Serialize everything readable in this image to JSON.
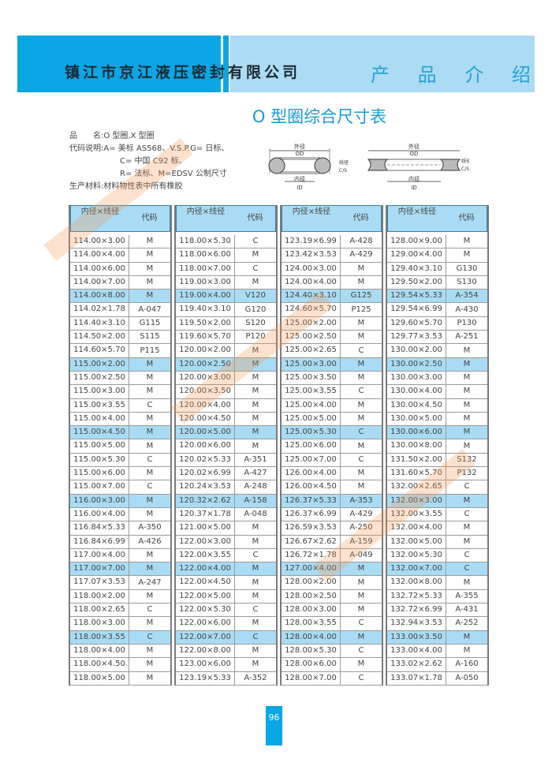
{
  "header": {
    "company": "镇江市京江液压密封有限公司",
    "section": "产 品 介 绍"
  },
  "title": "O 型圈综合尺寸表",
  "info": {
    "line1": "品　　名:O 型圈,X 型圈",
    "line2": "代码说明:A= 美标 AS568、V.S.P.G= 日标、",
    "line3": "C= 中国 C92 标、",
    "line4": "R= 法标、M=EDSV 公制尺寸",
    "line5": "生产材料:材料物性表中所有橡胶"
  },
  "diagram": {
    "od_cn": "外径",
    "od": "OD",
    "id_cn": "内径",
    "id": "ID",
    "cs_cn": "线径",
    "cs": "C/S"
  },
  "table_headers": {
    "size": "内径×线径",
    "code": "代码"
  },
  "colors": {
    "brand_blue": "#0aa6e6",
    "light_blue": "#abdcf3",
    "highlight_row": "#a9dcf4",
    "watermark": "#f59650"
  },
  "tables": [
    [
      [
        "114.00×3.00",
        "M"
      ],
      [
        "114.00×4.00",
        "M"
      ],
      [
        "114.00×6.00",
        "M"
      ],
      [
        "114.00×7.00",
        "M"
      ],
      [
        "114.00×8.00",
        "M"
      ],
      [
        "114.02×1.78",
        "A-047"
      ],
      [
        "114.40×3.10",
        "G115"
      ],
      [
        "114.50×2.00",
        "S115"
      ],
      [
        "114.60×5.70",
        "P115"
      ],
      [
        "115.00×2.00",
        "M"
      ],
      [
        "115.00×2.50",
        "M"
      ],
      [
        "115.00×3.00",
        "M"
      ],
      [
        "115.00×3.55",
        "C"
      ],
      [
        "115.00×4.00",
        "M"
      ],
      [
        "115.00×4.50",
        "M"
      ],
      [
        "115.00×5.00",
        "M"
      ],
      [
        "115.00×5.30",
        "C"
      ],
      [
        "115.00×6.00",
        "M"
      ],
      [
        "115.00×7.00",
        "C"
      ],
      [
        "116.00×3.00",
        "M"
      ],
      [
        "116.00×4.00",
        "M"
      ],
      [
        "116.84×5.33",
        "A-350"
      ],
      [
        "116.84×6.99",
        "A-426"
      ],
      [
        "117.00×4.00",
        "M"
      ],
      [
        "117.00×7.00",
        "M"
      ],
      [
        "117.07×3.53",
        "A-247"
      ],
      [
        "118.00×2.00",
        "M"
      ],
      [
        "118.00×2.65",
        "C"
      ],
      [
        "118.00×3.00",
        "M"
      ],
      [
        "118.00×3.55",
        "C"
      ],
      [
        "118.00×4.00",
        "M"
      ],
      [
        "118.00×4.50",
        "M"
      ],
      [
        "118.00×5.00",
        "M"
      ]
    ],
    [
      [
        "118.00×5.30",
        "C"
      ],
      [
        "118.00×6.00",
        "M"
      ],
      [
        "118.00×7.00",
        "C"
      ],
      [
        "119.00×3.00",
        "M"
      ],
      [
        "119.00×4.00",
        "V120"
      ],
      [
        "119.40×3.10",
        "G120"
      ],
      [
        "119.50×2.00",
        "S120"
      ],
      [
        "119.60×5.70",
        "P120"
      ],
      [
        "120.00×2.00",
        "M"
      ],
      [
        "120.00×2.50",
        "M"
      ],
      [
        "120.00×3.00",
        "M"
      ],
      [
        "120.00×3.50",
        "M"
      ],
      [
        "120.00×4.00",
        "M"
      ],
      [
        "120.00×4.50",
        "M"
      ],
      [
        "120.00×5.00",
        "M"
      ],
      [
        "120.00×6.00",
        "M"
      ],
      [
        "120.02×5.33",
        "A-351"
      ],
      [
        "120.02×6.99",
        "A-427"
      ],
      [
        "120.24×3.53",
        "A-248"
      ],
      [
        "120.32×2.62",
        "A-158"
      ],
      [
        "120.37×1.78",
        "A-048"
      ],
      [
        "121.00×5.00",
        "M"
      ],
      [
        "122.00×3.00",
        "M"
      ],
      [
        "122.00×3.55",
        "C"
      ],
      [
        "122.00×4.00",
        "M"
      ],
      [
        "122.00×4.50",
        "M"
      ],
      [
        "122.00×5.00",
        "M"
      ],
      [
        "122.00×5.30",
        "C"
      ],
      [
        "122.00×6.00",
        "M"
      ],
      [
        "122.00×7.00",
        "C"
      ],
      [
        "122.00×8.00",
        "M"
      ],
      [
        "123.00×6.00",
        "M"
      ],
      [
        "123.19×5.33",
        "A-352"
      ]
    ],
    [
      [
        "123.19×6.99",
        "A-428"
      ],
      [
        "123.42×3.53",
        "A-429"
      ],
      [
        "124.00×3.00",
        "M"
      ],
      [
        "124.00×4.00",
        "M"
      ],
      [
        "124.40×3.10",
        "G125"
      ],
      [
        "124.60×5.70",
        "P125"
      ],
      [
        "125.00×2.00",
        "M"
      ],
      [
        "125.00×2.50",
        "M"
      ],
      [
        "125.00×2.65",
        "C"
      ],
      [
        "125.00×3.00",
        "M"
      ],
      [
        "125.00×3.50",
        "M"
      ],
      [
        "125.00×3.55",
        "C"
      ],
      [
        "125.00×4.00",
        "M"
      ],
      [
        "125.00×5.00",
        "M"
      ],
      [
        "125.00×5.30",
        "C"
      ],
      [
        "125.00×6.00",
        "M"
      ],
      [
        "125.00×7.00",
        "C"
      ],
      [
        "126.00×4.00",
        "M"
      ],
      [
        "126.00×4.50",
        "M"
      ],
      [
        "126.37×5.33",
        "A-353"
      ],
      [
        "126.37×6.99",
        "A-429"
      ],
      [
        "126.59×3.53",
        "A-250"
      ],
      [
        "126.67×2.62",
        "A-159"
      ],
      [
        "126.72×1.78",
        "A-049"
      ],
      [
        "127.00×4.00",
        "M"
      ],
      [
        "128.00×2.00",
        "M"
      ],
      [
        "128.00×2.50",
        "M"
      ],
      [
        "128.00×3.00",
        "M"
      ],
      [
        "128.00×3.55",
        "C"
      ],
      [
        "128.00×4.00",
        "M"
      ],
      [
        "128.00×5.30",
        "C"
      ],
      [
        "128.00×6.00",
        "M"
      ],
      [
        "128.00×7.00",
        "C"
      ]
    ],
    [
      [
        "128.00×9.00",
        "M"
      ],
      [
        "129.00×4.00",
        "M"
      ],
      [
        "129.40×3.10",
        "G130"
      ],
      [
        "129.50×2.00",
        "S130"
      ],
      [
        "129.54×5.33",
        "A-354"
      ],
      [
        "129.54×6.99",
        "A-430"
      ],
      [
        "129.60×5.70",
        "P130"
      ],
      [
        "129.77×3.53",
        "A-251"
      ],
      [
        "130.00×2.00",
        "M"
      ],
      [
        "130.00×2.50",
        "M"
      ],
      [
        "130.00×3.00",
        "M"
      ],
      [
        "130.00×4.00",
        "M"
      ],
      [
        "130.00×4.50",
        "M"
      ],
      [
        "130.00×5.00",
        "M"
      ],
      [
        "130.00×6.00",
        "M"
      ],
      [
        "130.00×8.00",
        "M"
      ],
      [
        "131.50×2.00",
        "S132"
      ],
      [
        "131.60×5.70",
        "P132"
      ],
      [
        "132.00×2.65",
        "C"
      ],
      [
        "132.00×3.00",
        "M"
      ],
      [
        "132.00×3.55",
        "C"
      ],
      [
        "132.00×4.00",
        "M"
      ],
      [
        "132.00×5.00",
        "M"
      ],
      [
        "132.00×5.30",
        "C"
      ],
      [
        "132.00×7.00",
        "C"
      ],
      [
        "132.00×8.00",
        "M"
      ],
      [
        "132.72×5.33",
        "A-355"
      ],
      [
        "132.72×6.99",
        "A-431"
      ],
      [
        "132.94×3.53",
        "A-252"
      ],
      [
        "133.00×3.50",
        "M"
      ],
      [
        "133.00×4.00",
        "M"
      ],
      [
        "133.02×2.62",
        "A-160"
      ],
      [
        "133.07×1.78",
        "A-050"
      ]
    ]
  ],
  "page_number": "96"
}
